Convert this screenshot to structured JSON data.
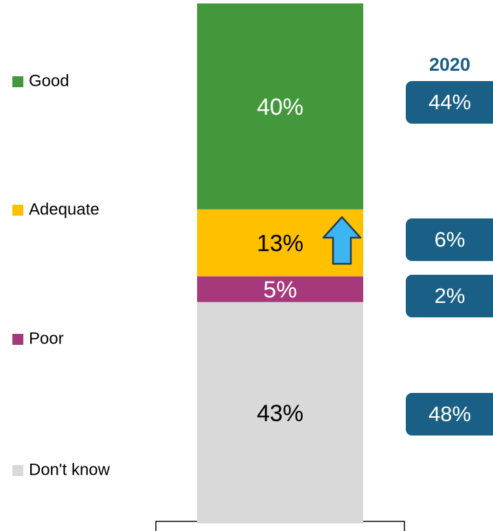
{
  "chart_data": {
    "type": "stacked_bar",
    "series": [
      {
        "name": "Good",
        "color": "#43983b",
        "values": [
          40
        ],
        "value_labels": [
          "40%"
        ]
      },
      {
        "name": "Adequate",
        "color": "#ffc000",
        "values": [
          13
        ],
        "value_labels": [
          "13%"
        ]
      },
      {
        "name": "Poor",
        "color": "#a6397c",
        "values": [
          5
        ],
        "value_labels": [
          "5%"
        ]
      },
      {
        "name": "Don't know",
        "color": "#d9d9d9",
        "values": [
          43
        ],
        "value_labels": [
          "43%"
        ]
      }
    ],
    "ylim": [
      0,
      101
    ],
    "comparison": {
      "label": "2020",
      "color": "#195f86",
      "values": [
        44,
        6,
        2,
        48
      ],
      "value_labels": [
        "44%",
        "6%",
        "2%",
        "48%"
      ]
    }
  }
}
